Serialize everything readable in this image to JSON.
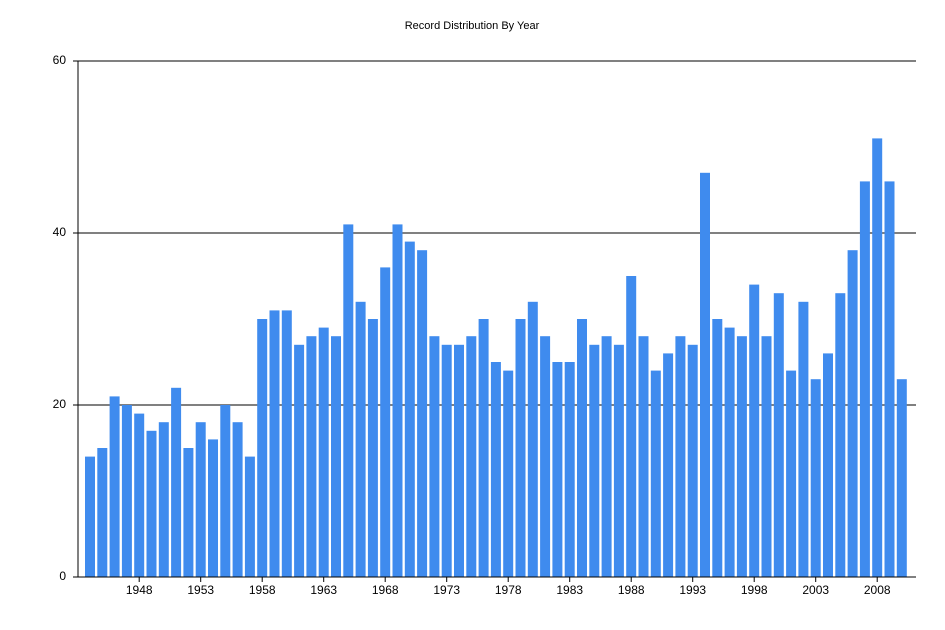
{
  "chart_data": {
    "type": "bar",
    "title": "Record Distribution By Year",
    "categories": [
      null,
      null,
      null,
      null,
      "1948",
      null,
      null,
      null,
      null,
      "1953",
      null,
      null,
      null,
      null,
      "1958",
      null,
      null,
      null,
      null,
      "1963",
      null,
      null,
      null,
      null,
      "1968",
      null,
      null,
      null,
      null,
      "1973",
      null,
      null,
      null,
      null,
      "1978",
      null,
      null,
      null,
      null,
      "1983",
      null,
      null,
      null,
      null,
      "1988",
      null,
      null,
      null,
      null,
      "1993",
      null,
      null,
      null,
      null,
      "1998",
      null,
      null,
      null,
      null,
      "2003",
      null,
      null,
      null,
      null,
      "2008",
      null,
      null
    ],
    "values": [
      14,
      15,
      21,
      20,
      19,
      17,
      18,
      22,
      15,
      18,
      16,
      20,
      18,
      14,
      30,
      31,
      31,
      27,
      28,
      29,
      28,
      41,
      32,
      30,
      36,
      41,
      39,
      38,
      28,
      27,
      27,
      28,
      30,
      25,
      24,
      30,
      32,
      28,
      25,
      25,
      30,
      27,
      28,
      27,
      35,
      28,
      24,
      26,
      28,
      27,
      47,
      30,
      29,
      28,
      34,
      28,
      33,
      24,
      32,
      23,
      26,
      33,
      38,
      46,
      51,
      46,
      23
    ],
    "color": "#3f8bee",
    "ylim": [
      0,
      60
    ],
    "yticks": [
      0,
      20,
      40,
      60
    ],
    "grid": true
  }
}
